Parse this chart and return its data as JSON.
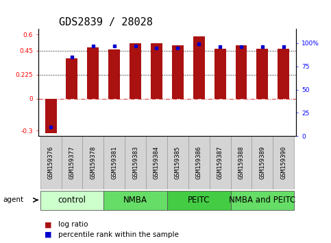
{
  "title": "GDS2839 / 28028",
  "samples": [
    "GSM159376",
    "GSM159377",
    "GSM159378",
    "GSM159381",
    "GSM159383",
    "GSM159384",
    "GSM159385",
    "GSM159386",
    "GSM159387",
    "GSM159388",
    "GSM159389",
    "GSM159390"
  ],
  "log_ratios": [
    -0.32,
    0.38,
    0.48,
    0.46,
    0.52,
    0.52,
    0.5,
    0.58,
    0.47,
    0.5,
    0.47,
    0.47
  ],
  "percentile_ranks": [
    10,
    85,
    97,
    97,
    97,
    95,
    95,
    99,
    96,
    96,
    96,
    96
  ],
  "groups": [
    {
      "label": "control",
      "start": 0,
      "end": 3,
      "color": "#ccffcc"
    },
    {
      "label": "NMBA",
      "start": 3,
      "end": 6,
      "color": "#66dd66"
    },
    {
      "label": "PEITC",
      "start": 6,
      "end": 9,
      "color": "#44cc44"
    },
    {
      "label": "NMBA and PEITC",
      "start": 9,
      "end": 12,
      "color": "#66dd66"
    }
  ],
  "ylim_left": [
    -0.35,
    0.65
  ],
  "ylim_right": [
    0,
    115
  ],
  "yticks_left": [
    -0.3,
    0,
    0.225,
    0.45,
    0.6
  ],
  "yticks_right": [
    0,
    25,
    50,
    75,
    100
  ],
  "hlines": [
    0.45,
    0.225
  ],
  "bar_color": "#aa1111",
  "pct_color": "#0000cc",
  "background_color": "#ffffff",
  "title_fontsize": 11,
  "tick_fontsize": 6.5,
  "sample_fontsize": 6.5,
  "group_label_fontsize": 8.5,
  "legend_fontsize": 7.5
}
